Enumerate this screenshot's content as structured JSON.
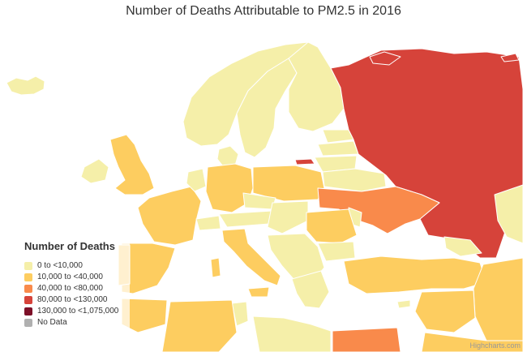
{
  "title": "Number of Deaths Attributable to PM2.5 in 2016",
  "credits": "Highcharts.com",
  "colors": {
    "sea": "#ffffff",
    "border": "#ffffff"
  },
  "legend": {
    "title": "Number of Deaths",
    "items": [
      {
        "label": "0 to <10,000",
        "color": "#f5efa9"
      },
      {
        "label": "10,000 to <40,000",
        "color": "#fdcd60"
      },
      {
        "label": "40,000 to <80,000",
        "color": "#f98a4b"
      },
      {
        "label": "80,000 to <130,000",
        "color": "#d6433a"
      },
      {
        "label": "130,000 to <1,075,000",
        "color": "#7d1028"
      },
      {
        "label": "No Data",
        "color": "#b0b0b0"
      }
    ]
  }
}
